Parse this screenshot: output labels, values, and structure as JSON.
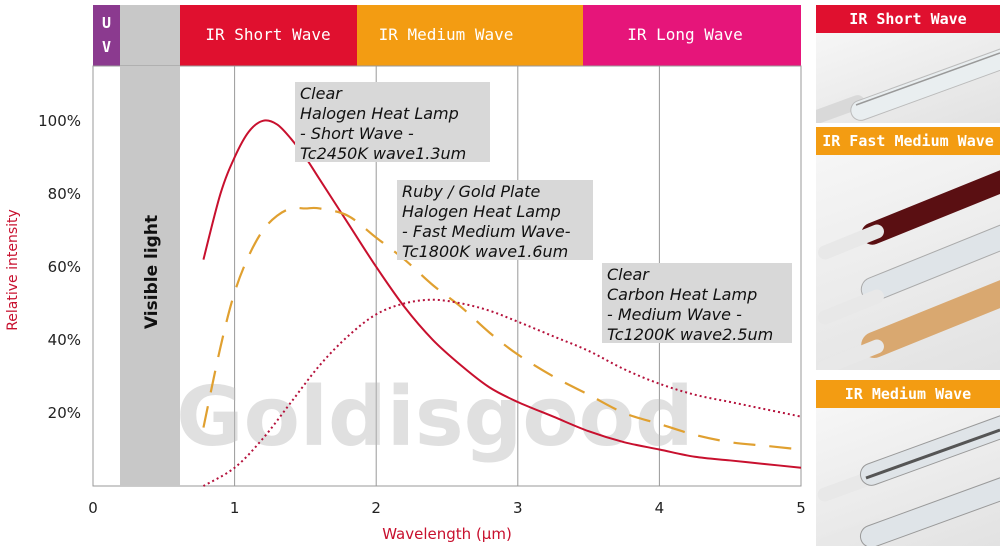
{
  "colors": {
    "uv": "#8b3a8f",
    "short": "#e0102f",
    "medium": "#f39c12",
    "long": "#e6157a",
    "visible_band": "#c8c8c8",
    "curve_short": "#c8102e",
    "curve_medium": "#e0a030",
    "curve_long": "#b5123c",
    "axis_text": "#c8102e",
    "note_bg": "#d8d8d8"
  },
  "bands": {
    "uv_label": "UV",
    "short": "IR Short Wave",
    "medium": "IR Medium Wave",
    "long": "IR Long Wave",
    "visible": "Visible light"
  },
  "watermark": "Goldisgood",
  "notes": [
    {
      "lines": [
        "Clear",
        "Halogen Heat Lamp",
        "- Short Wave -",
        "Tc2450K  wave1.3um"
      ]
    },
    {
      "lines": [
        "Ruby  /  Gold Plate",
        "Halogen Heat Lamp",
        "- Fast Medium Wave-",
        "Tc1800K wave1.6um"
      ]
    },
    {
      "lines": [
        "Clear",
        "Carbon Heat Lamp",
        "- Medium Wave -",
        "Tc1200K  wave2.5um"
      ]
    }
  ],
  "photos": {
    "labels": [
      "IR Short Wave",
      "IR Fast Medium Wave",
      "IR Medium Wave"
    ],
    "colors": [
      "#e0102f",
      "#f39c12",
      "#f39c12"
    ]
  },
  "chart_data": {
    "type": "line",
    "xlabel": "Wavelength (μm)",
    "ylabel": "Relative intensity",
    "xlim": [
      0,
      5
    ],
    "ylim": [
      0,
      1.15
    ],
    "x_ticks": [
      "0",
      "1",
      "2",
      "3",
      "4",
      "5"
    ],
    "y_ticks": [
      "20%",
      "40%",
      "60%",
      "80%",
      "100%"
    ],
    "y_tick_values": [
      0.2,
      0.4,
      0.6,
      0.8,
      1.0
    ],
    "series": [
      {
        "x": [
          0.78,
          0.9,
          1.0,
          1.1,
          1.2,
          1.3,
          1.4,
          1.5,
          1.6,
          1.8,
          2.0,
          2.2,
          2.4,
          2.6,
          2.8,
          3.0,
          3.25,
          3.5,
          3.75,
          4.0,
          4.25,
          4.5,
          4.75,
          5.0
        ],
        "y": [
          0.62,
          0.8,
          0.9,
          0.97,
          1.0,
          0.99,
          0.95,
          0.9,
          0.84,
          0.72,
          0.6,
          0.49,
          0.4,
          0.33,
          0.27,
          0.23,
          0.19,
          0.15,
          0.12,
          0.1,
          0.08,
          0.07,
          0.06,
          0.05
        ],
        "style": "solid"
      },
      {
        "x": [
          0.78,
          0.9,
          1.0,
          1.1,
          1.2,
          1.3,
          1.4,
          1.5,
          1.6,
          1.8,
          2.0,
          2.2,
          2.4,
          2.6,
          2.8,
          3.0,
          3.25,
          3.5,
          3.75,
          4.0,
          4.25,
          4.5,
          4.75,
          5.0
        ],
        "y": [
          0.16,
          0.38,
          0.53,
          0.63,
          0.7,
          0.74,
          0.76,
          0.76,
          0.76,
          0.74,
          0.68,
          0.62,
          0.55,
          0.49,
          0.42,
          0.36,
          0.3,
          0.25,
          0.2,
          0.17,
          0.14,
          0.12,
          0.11,
          0.1
        ],
        "style": "dashed"
      },
      {
        "x": [
          0.78,
          1.0,
          1.2,
          1.4,
          1.6,
          1.8,
          2.0,
          2.2,
          2.4,
          2.6,
          2.8,
          3.0,
          3.25,
          3.5,
          3.75,
          4.0,
          4.25,
          4.5,
          4.75,
          5.0
        ],
        "y": [
          0.0,
          0.05,
          0.13,
          0.23,
          0.33,
          0.41,
          0.47,
          0.5,
          0.51,
          0.5,
          0.48,
          0.45,
          0.41,
          0.37,
          0.32,
          0.28,
          0.25,
          0.23,
          0.21,
          0.19
        ],
        "style": "dotted"
      }
    ]
  }
}
